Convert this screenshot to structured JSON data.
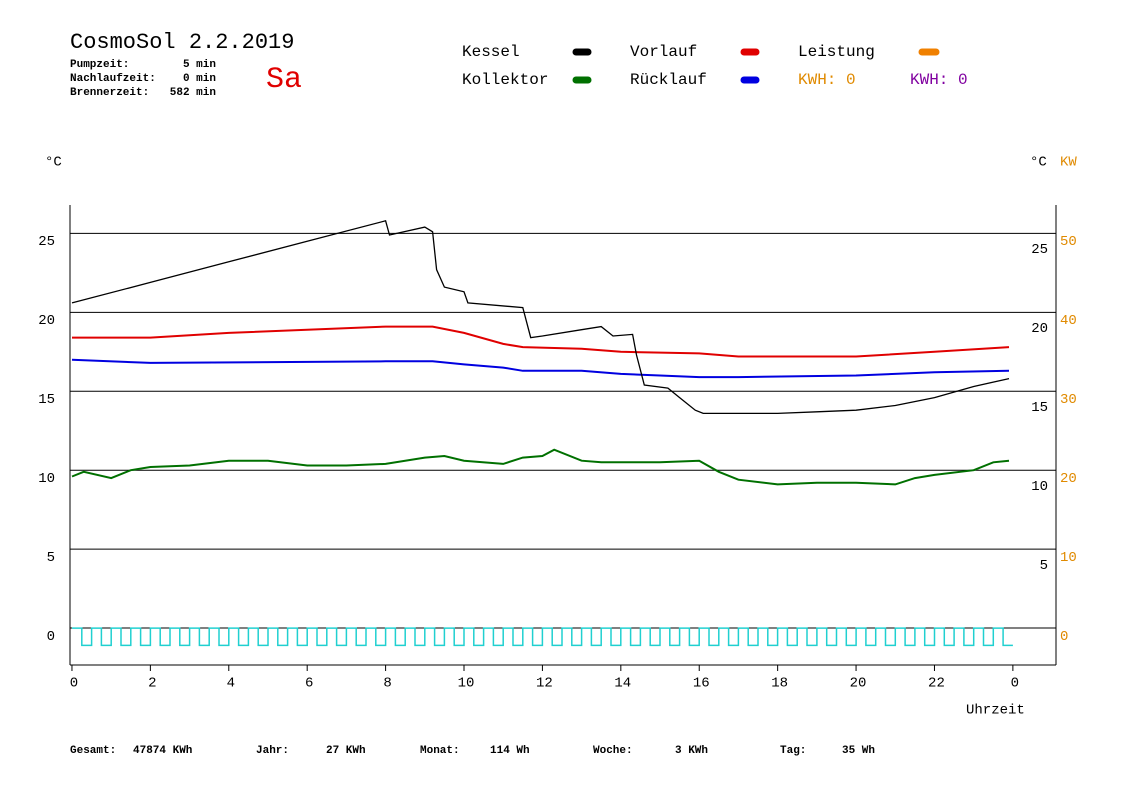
{
  "chart_data": {
    "type": "line",
    "title": "CosmoSol 2.2.2019",
    "day": "Sa",
    "day_color": "#e00000",
    "status": [
      {
        "label": "Pumpzeit:",
        "value": "5 min"
      },
      {
        "label": "Nachlaufzeit:",
        "value": "0 min"
      },
      {
        "label": "Brennerzeit:",
        "value": "582 min"
      }
    ],
    "y_unit": "°C",
    "y_right_unit": "°C",
    "y2_unit": "KW",
    "x_label": "Uhrzeit",
    "xlim": [
      -0.05,
      25.1
    ],
    "xticks": [
      0,
      2,
      4,
      6,
      8,
      10,
      12,
      14,
      16,
      18,
      20,
      22,
      {
        "value": 24,
        "label": "0"
      }
    ],
    "ylim": [
      -2.34,
      26.8
    ],
    "yticks": [
      0,
      5,
      10,
      15,
      20,
      25
    ],
    "y_right_ticks": [
      5,
      10,
      15,
      20,
      25
    ],
    "y2lim": [
      -4.68,
      53.6
    ],
    "y2ticks": [
      0,
      10,
      20,
      30,
      40,
      50
    ],
    "y2_color": "#e08a00",
    "grid": true,
    "series": [
      {
        "name": "Kessel",
        "color": "#000000",
        "x": [
          0,
          2,
          4,
          6,
          8,
          8.1,
          9,
          9.2,
          9.3,
          9.5,
          10,
          10.1,
          11.5,
          11.7,
          12,
          13,
          13.5,
          13.8,
          14.3,
          14.4,
          14.6,
          15.2,
          15.5,
          15.9,
          16.1,
          18,
          19,
          20,
          21,
          22,
          23,
          23.9
        ],
        "values": [
          20.6,
          21.9,
          23.2,
          24.5,
          25.8,
          24.9,
          25.4,
          25.1,
          22.7,
          21.6,
          21.3,
          20.6,
          20.3,
          18.4,
          18.5,
          18.9,
          19.1,
          18.5,
          18.6,
          17.3,
          15.4,
          15.2,
          14.6,
          13.8,
          13.6,
          13.6,
          13.7,
          13.8,
          14.1,
          14.6,
          15.3,
          15.8
        ]
      },
      {
        "name": "Vorlauf",
        "color": "#e00000",
        "x": [
          0,
          2,
          4,
          6,
          8,
          9.2,
          10,
          11,
          11.5,
          13,
          14,
          16,
          17,
          18,
          20,
          22,
          23.9
        ],
        "values": [
          18.4,
          18.4,
          18.7,
          18.9,
          19.1,
          19.1,
          18.7,
          18.0,
          17.8,
          17.7,
          17.5,
          17.4,
          17.2,
          17.2,
          17.2,
          17.5,
          17.8
        ]
      },
      {
        "name": "Rücklauf",
        "color": "#0000e0",
        "x": [
          0,
          2,
          8,
          9.2,
          10,
          11,
          11.5,
          13,
          14,
          15,
          16,
          17,
          20,
          22,
          23.9
        ],
        "values": [
          17.0,
          16.8,
          16.9,
          16.9,
          16.7,
          16.5,
          16.3,
          16.3,
          16.1,
          16.0,
          15.9,
          15.9,
          16.0,
          16.2,
          16.3
        ]
      },
      {
        "name": "Kollektor",
        "color": "#007000",
        "x": [
          0,
          0.3,
          1,
          1.5,
          2,
          3,
          4,
          5,
          6,
          7,
          8,
          9,
          9.5,
          10,
          11,
          11.5,
          12,
          12.3,
          13,
          13.5,
          14,
          15,
          16,
          16.5,
          17,
          18,
          19,
          20,
          21,
          21.5,
          22,
          23,
          23.5,
          23.9
        ],
        "values": [
          9.6,
          9.9,
          9.5,
          10.0,
          10.2,
          10.3,
          10.6,
          10.6,
          10.3,
          10.3,
          10.4,
          10.8,
          10.9,
          10.6,
          10.4,
          10.8,
          10.9,
          11.3,
          10.6,
          10.5,
          10.5,
          10.5,
          10.6,
          9.9,
          9.4,
          9.1,
          9.2,
          9.2,
          9.1,
          9.5,
          9.7,
          10.0,
          10.5,
          10.6
        ]
      }
    ],
    "legend_extra": [
      {
        "name": "Leistung",
        "color": "#f08000"
      }
    ],
    "kwh_labels": [
      {
        "text": "KWH: 0",
        "color": "#e08a00"
      },
      {
        "text": "KWH: 0",
        "color": "#8000a0"
      }
    ],
    "pump_signal": {
      "color": "#20d0d0",
      "x": [
        0,
        0.25,
        0.5,
        0.75,
        1,
        1.25,
        1.5,
        1.75,
        2,
        2.25,
        2.5,
        2.75,
        3,
        3.25,
        3.5,
        3.75,
        4,
        4.25,
        4.5,
        4.75,
        5,
        5.25,
        5.5,
        5.75,
        6,
        6.25,
        6.5,
        6.75,
        7,
        7.25,
        7.5,
        7.75,
        8,
        8.25,
        8.5,
        8.75,
        9,
        9.25,
        9.5,
        9.75,
        10,
        10.25,
        10.5,
        10.75,
        11,
        11.25,
        11.5,
        11.75,
        12,
        12.25,
        12.5,
        12.75,
        13,
        13.25,
        13.5,
        13.75,
        14,
        14.25,
        14.5,
        14.75,
        15,
        15.25,
        15.5,
        15.75,
        16,
        16.25,
        16.5,
        16.75,
        17,
        17.25,
        17.5,
        17.75,
        18,
        18.25,
        18.5,
        18.75,
        19,
        19.25,
        19.5,
        19.75,
        20,
        20.25,
        20.5,
        20.75,
        21,
        21.25,
        21.5,
        21.75,
        22,
        22.25,
        22.5,
        22.75,
        23,
        23.25,
        23.5,
        23.75
      ],
      "values": [
        0,
        -1.1,
        0,
        -1.1,
        0,
        -1.1,
        0,
        -1.1,
        0,
        -1.1,
        0,
        -1.1,
        0,
        -1.1,
        0,
        -1.1,
        0,
        -1.1,
        0,
        -1.1,
        0,
        -1.1,
        0,
        -1.1,
        0,
        -1.1,
        0,
        -1.1,
        0,
        -1.1,
        0,
        -1.1,
        0,
        -1.1,
        0,
        -1.1,
        0,
        -1.1,
        0,
        -1.1,
        0,
        -1.1,
        0,
        -1.1,
        0,
        -1.1,
        0,
        -1.1,
        0,
        -1.1,
        0,
        -1.1,
        0,
        -1.1,
        0,
        -1.1,
        0,
        -1.1,
        0,
        -1.1,
        0,
        -1.1,
        0,
        -1.1,
        0,
        -1.1,
        0,
        -1.1,
        0,
        -1.1,
        0,
        -1.1,
        0,
        -1.1,
        0,
        -1.1,
        0,
        -1.1,
        0,
        -1.1,
        0,
        -1.1,
        0,
        -1.1,
        0,
        -1.1,
        0,
        -1.1,
        0,
        -1.1,
        0,
        -1.1,
        0,
        -1.1,
        0,
        -1.1
      ]
    },
    "totals": [
      {
        "label": "Gesamt:",
        "value": "47874 KWh"
      },
      {
        "label": "Jahr:",
        "value": "27 KWh"
      },
      {
        "label": "Monat:",
        "value": "114 Wh"
      },
      {
        "label": "Woche:",
        "value": "3 KWh"
      },
      {
        "label": "Tag:",
        "value": "35 Wh"
      }
    ]
  }
}
